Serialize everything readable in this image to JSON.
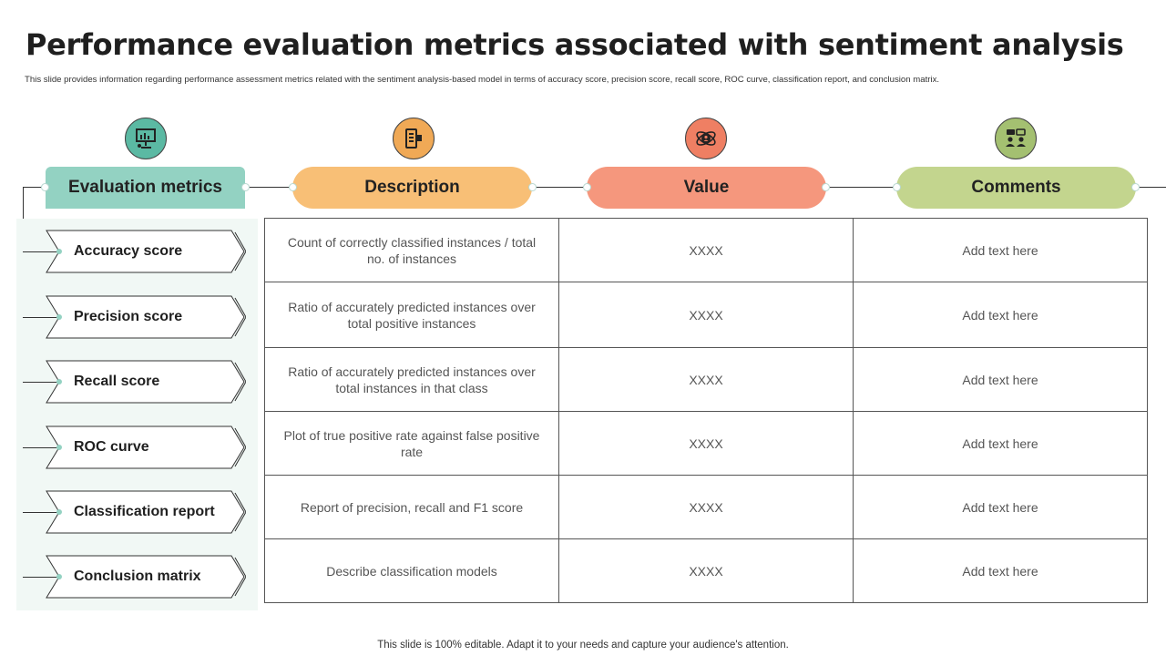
{
  "slide": {
    "title": "Performance evaluation metrics associated with sentiment analysis",
    "subtitle": "This slide provides information regarding performance assessment metrics related with the sentiment analysis-based model in terms of accuracy score, precision score, recall score, ROC curve, classification report, and conclusion matrix.",
    "footer": "This slide is 100% editable. Adapt it to your needs and capture your audience's attention."
  },
  "headers": [
    {
      "label": "Evaluation metrics",
      "color": "#93d2c2",
      "icon": "presentation-chart-icon",
      "icon_color": "#5bb9a3"
    },
    {
      "label": "Description",
      "color": "#f8bf76",
      "icon": "document-list-icon",
      "icon_color": "#f0a956"
    },
    {
      "label": "Value",
      "color": "#f5977d",
      "icon": "atom-user-icon",
      "icon_color": "#ef7f63"
    },
    {
      "label": "Comments",
      "color": "#c3d58e",
      "icon": "team-discussion-icon",
      "icon_color": "#a4c071"
    }
  ],
  "rows": [
    {
      "metric": "Accuracy score",
      "description": "Count of correctly classified instances / total no. of instances",
      "value": "XXXX",
      "comment": "Add text here"
    },
    {
      "metric": "Precision score",
      "description": "Ratio of accurately predicted instances over total positive instances",
      "value": "XXXX",
      "comment": "Add text here"
    },
    {
      "metric": "Recall score",
      "description": "Ratio of accurately predicted instances over total instances in that class",
      "value": "XXXX",
      "comment": "Add text here"
    },
    {
      "metric": "ROC curve",
      "description": "Plot of true positive rate against false positive rate",
      "value": "XXXX",
      "comment": "Add text here"
    },
    {
      "metric": "Classification report",
      "description": "Report of precision, recall and F1 score",
      "value": "XXXX",
      "comment": "Add text here"
    },
    {
      "metric": "Conclusion matrix",
      "description": "Describe classification models",
      "value": "XXXX",
      "comment": "Add text here"
    }
  ]
}
